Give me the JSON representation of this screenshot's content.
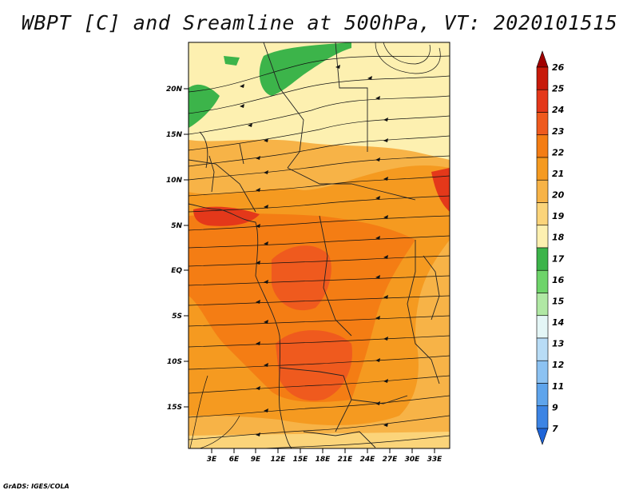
{
  "title": "WBPT [C] and Sreamline at 500hPa, VT: 2020101515",
  "credit": "GrADS: IGES/COLA",
  "map": {
    "lat_labels": [
      "20N",
      "15N",
      "10N",
      "5N",
      "EQ",
      "5S",
      "10S",
      "15S"
    ],
    "lon_labels": [
      "3E",
      "6E",
      "9E",
      "12E",
      "15E",
      "18E",
      "21E",
      "24E",
      "27E",
      "30E",
      "33E"
    ]
  },
  "colorbar": {
    "labels": [
      "26",
      "25",
      "24",
      "23",
      "22",
      "21",
      "20",
      "19",
      "18",
      "17",
      "16",
      "15",
      "14",
      "13",
      "12",
      "11",
      "9",
      "7"
    ],
    "colors": [
      "#a00000",
      "#c81a0a",
      "#e4381a",
      "#ef5a1e",
      "#f47d14",
      "#f59a20",
      "#f7b347",
      "#fbd47a",
      "#fdf0b0",
      "#3cb44a",
      "#6ed46a",
      "#b0e8a4",
      "#e4f6f6",
      "#b8dcf6",
      "#8cc2f2",
      "#5ea4ec",
      "#3c84e4",
      "#1e64d8"
    ]
  }
}
